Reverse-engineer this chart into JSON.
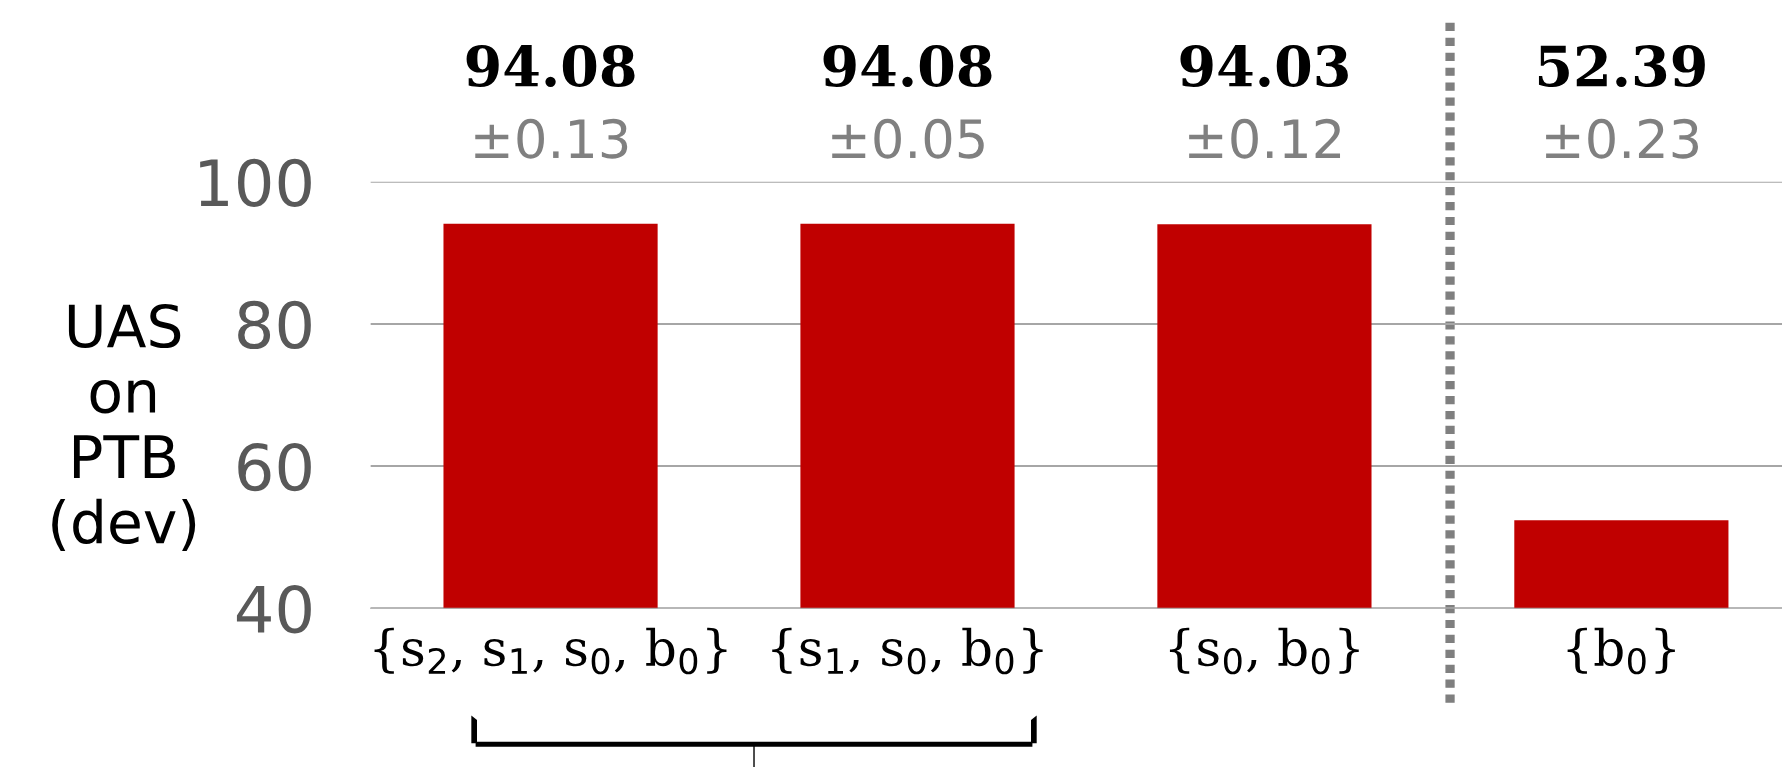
{
  "chart_data": {
    "type": "bar",
    "ylabel": "UAS\non\nPTB\n(dev)",
    "categories": [
      "{s$_{2}$, s$_{1}$, s$_{0}$, b$_{0}$}",
      "{s$_{1}$, s$_{0}$, b$_{0}$}",
      "{s$_{0}$, b$_{0}$}",
      "{b$_{0}$}"
    ],
    "values": [
      94.08,
      94.08,
      94.03,
      52.39
    ],
    "color": "#c00000",
    "data_labels": true,
    "annotations": [
      "±0.13",
      "±0.05",
      "±0.12",
      "±0.23"
    ],
    "ylim": [
      40,
      100
    ],
    "yticks": [
      40,
      60,
      80,
      100
    ],
    "grid": "y",
    "legend": false
  }
}
